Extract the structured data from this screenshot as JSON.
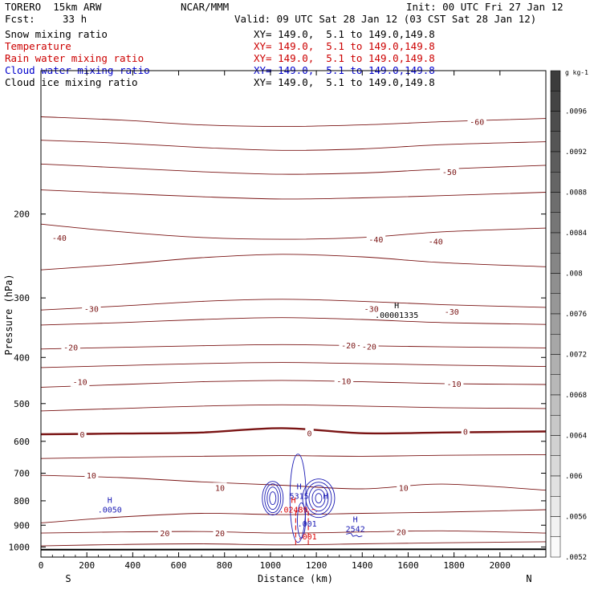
{
  "header": {
    "model": "TORERO  15km ARW",
    "org": "NCAR/MMM",
    "init": "Init: 00 UTC Fri 27 Jan 12",
    "fcst_label": "Fcst:",
    "fcst_value": "33 h",
    "valid": "Valid: 09 UTC Sat 28 Jan 12 (03 CST Sat 28 Jan 12)"
  },
  "fields": [
    {
      "name": "Snow mixing ratio",
      "xy": "XY= 149.0,  5.1 to 149.0,149.8",
      "color": "#000000"
    },
    {
      "name": "Temperature",
      "xy": "XY= 149.0,  5.1 to 149.0,149.8",
      "color": "#cc0000"
    },
    {
      "name": "Rain water mixing ratio",
      "xy": "XY= 149.0,  5.1 to 149.0,149.8",
      "color": "#cc0000"
    },
    {
      "name": "Cloud water mixing ratio",
      "xy": "XY= 149.0,  5.1 to 149.0,149.8",
      "color": "#0000cc"
    },
    {
      "name": "Cloud ice mixing ratio",
      "xy": "XY= 149.0,  5.1 to 149.0,149.8",
      "color": "#000000"
    }
  ],
  "colors": {
    "temperature": "#7a1414",
    "rain": "#dd0000",
    "cloud_water": "#1a1ab4",
    "ice": "#000000"
  },
  "chart_data": {
    "type": "contour",
    "xlabel": "Distance (km)",
    "ylabel": "Pressure (hPa)",
    "x_range": [
      0,
      2200
    ],
    "y_range": [
      1050,
      100
    ],
    "y_log": true,
    "x_ticks": [
      0,
      200,
      400,
      600,
      800,
      1000,
      1200,
      1400,
      1600,
      1800,
      2000
    ],
    "y_ticks": [
      200,
      300,
      400,
      500,
      600,
      700,
      800,
      900,
      1000
    ],
    "x_end_labels": {
      "left": "S",
      "right": "N"
    },
    "temperature_contours": [
      {
        "level": -60,
        "p": [
          125,
          127,
          130,
          131,
          130,
          128,
          126
        ]
      },
      {
        "level": -55,
        "p": [
          140,
          142,
          145,
          147,
          146,
          143,
          141
        ]
      },
      {
        "level": -50,
        "p": [
          157,
          160,
          163,
          165,
          164,
          161,
          158
        ]
      },
      {
        "level": -45,
        "p": [
          178,
          181,
          184,
          186,
          185,
          183,
          180
        ]
      },
      {
        "level": -40,
        "p": [
          210,
          218,
          224,
          226,
          224,
          218,
          214
        ]
      },
      {
        "level": -35,
        "p": [
          262,
          255,
          247,
          243,
          246,
          253,
          258
        ]
      },
      {
        "level": -30,
        "p": [
          318,
          312,
          305,
          302,
          305,
          310,
          314
        ]
      },
      {
        "level": -25,
        "p": [
          342,
          338,
          333,
          330,
          333,
          338,
          341
        ]
      },
      {
        "level": -20,
        "p": [
          384,
          381,
          378,
          376,
          378,
          380,
          382
        ]
      },
      {
        "level": -15,
        "p": [
          420,
          416,
          412,
          410,
          412,
          415,
          418
        ]
      },
      {
        "level": -10,
        "p": [
          462,
          456,
          450,
          447,
          450,
          454,
          456
        ]
      },
      {
        "level": -5,
        "p": [
          518,
          512,
          506,
          503,
          506,
          510,
          512
        ]
      },
      {
        "level": 0,
        "p": [
          580,
          578,
          575,
          563,
          577,
          575,
          572
        ],
        "bold": true
      },
      {
        "level": 5,
        "p": [
          652,
          648,
          645,
          643,
          645,
          642,
          640
        ]
      },
      {
        "level": 10,
        "p": [
          707,
          715,
          730,
          742,
          755,
          738,
          760
        ]
      },
      {
        "level": 15,
        "p": [
          890,
          865,
          850,
          855,
          850,
          845,
          835
        ]
      },
      {
        "level": 20,
        "p": [
          935,
          930,
          928,
          935,
          930,
          925,
          935
        ]
      },
      {
        "level": 25,
        "p": [
          995,
          988,
          985,
          990,
          985,
          980,
          975
        ]
      }
    ],
    "temperature_contour_x": [
      0,
      350,
      700,
      1050,
      1400,
      1750,
      2200
    ],
    "temperature_labels": [
      {
        "text": "-60",
        "x": 1900,
        "p": 128
      },
      {
        "text": "-50",
        "x": 1780,
        "p": 163
      },
      {
        "text": "-40",
        "x": 80,
        "p": 224
      },
      {
        "text": "-40",
        "x": 1460,
        "p": 226
      },
      {
        "text": "-40",
        "x": 1720,
        "p": 228
      },
      {
        "text": "-30",
        "x": 220,
        "p": 316
      },
      {
        "text": "-30",
        "x": 1440,
        "p": 316
      },
      {
        "text": "-30",
        "x": 1790,
        "p": 320
      },
      {
        "text": "-20",
        "x": 130,
        "p": 381
      },
      {
        "text": "-20",
        "x": 1340,
        "p": 377
      },
      {
        "text": "-20",
        "x": 1430,
        "p": 379
      },
      {
        "text": "-10",
        "x": 170,
        "p": 450
      },
      {
        "text": "-10",
        "x": 1320,
        "p": 448
      },
      {
        "text": "-10",
        "x": 1800,
        "p": 454
      },
      {
        "text": "0",
        "x": 180,
        "p": 580
      },
      {
        "text": "0",
        "x": 1170,
        "p": 576
      },
      {
        "text": "0",
        "x": 1850,
        "p": 572
      },
      {
        "text": "10",
        "x": 220,
        "p": 707
      },
      {
        "text": "10",
        "x": 780,
        "p": 750
      },
      {
        "text": "10",
        "x": 1580,
        "p": 750
      },
      {
        "text": "20",
        "x": 540,
        "p": 935
      },
      {
        "text": "20",
        "x": 780,
        "p": 935
      },
      {
        "text": "20",
        "x": 1570,
        "p": 930
      }
    ],
    "maxima": [
      {
        "label": "H",
        "value": ".00001335",
        "x": 1550,
        "p": 320,
        "field": "ice"
      },
      {
        "label": "H",
        "value": "5315",
        "x": 1125,
        "p": 768,
        "field": "cloud_water"
      },
      {
        "label": "H",
        "value": ".02489",
        "x": 1100,
        "p": 820,
        "field": "rain"
      },
      {
        "label": "H",
        "value": ".0050",
        "x": 300,
        "p": 820,
        "field": "cloud_water"
      },
      {
        "label": "H",
        "value": "2542",
        "x": 1370,
        "p": 900,
        "field": "cloud_water"
      },
      {
        "label": "",
        "value": ".001",
        "x": 1160,
        "p": 878,
        "field": "cloud_water"
      },
      {
        "label": "",
        "value": ".001",
        "x": 1160,
        "p": 935,
        "field": "rain"
      },
      {
        "label": "H",
        "value": "",
        "x": 1240,
        "p": 805,
        "field": "cloud_water"
      }
    ],
    "colorbar": {
      "unit": "g kg-1",
      "labels": [
        ".0096",
        ".0092",
        ".0088",
        ".0084",
        ".008",
        ".0076",
        ".0072",
        ".0068",
        ".0064",
        ".006",
        ".0056",
        ".0052"
      ]
    }
  }
}
